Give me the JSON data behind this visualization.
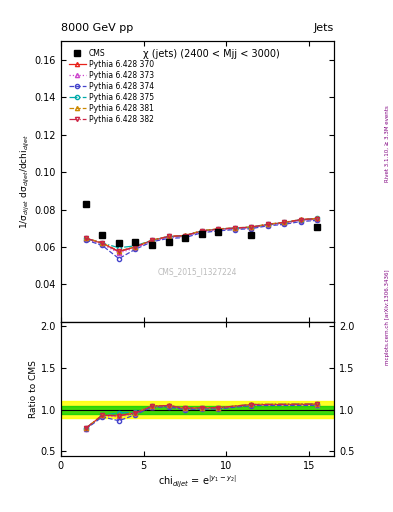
{
  "title_left": "8000 GeV pp",
  "title_right": "Jets",
  "panel_title": "χ (jets) (2400 < Mjj < 3000)",
  "ylabel_main": "1/σ$_{dijet}$ dσ$_{dijet}$/dchi$_{dijet}$",
  "ylabel_ratio": "Ratio to CMS",
  "xlabel": "chi$_{dijet}$ = e$^{|y_1-y_2|}$",
  "watermark": "CMS_2015_I1327224",
  "right_label": "mcplots.cern.ch [arXiv:1306.3436]",
  "rivet_label": "Rivet 3.1.10, ≥ 3.3M events",
  "cms_x": [
    1.5,
    2.5,
    3.5,
    4.5,
    5.5,
    6.5,
    7.5,
    8.5,
    9.5,
    11.5,
    15.5
  ],
  "cms_y": [
    0.0831,
    0.0665,
    0.062,
    0.0625,
    0.061,
    0.0625,
    0.065,
    0.067,
    0.068,
    0.0665,
    0.0705
  ],
  "x_mc": [
    1.5,
    2.5,
    3.5,
    4.5,
    5.5,
    6.5,
    7.5,
    8.5,
    9.5,
    10.5,
    11.5,
    12.5,
    13.5,
    14.5,
    15.5
  ],
  "y_370": [
    0.0645,
    0.062,
    0.0575,
    0.06,
    0.0635,
    0.0655,
    0.066,
    0.0685,
    0.0695,
    0.07,
    0.0705,
    0.072,
    0.073,
    0.0745,
    0.075
  ],
  "y_373": [
    0.0643,
    0.0615,
    0.0568,
    0.0595,
    0.0631,
    0.065,
    0.0656,
    0.068,
    0.0691,
    0.0697,
    0.0702,
    0.0717,
    0.0726,
    0.0741,
    0.0747
  ],
  "y_374": [
    0.0638,
    0.0608,
    0.0538,
    0.0588,
    0.0628,
    0.0646,
    0.065,
    0.0676,
    0.0686,
    0.0693,
    0.0698,
    0.0713,
    0.0721,
    0.0736,
    0.0742
  ],
  "y_375": [
    0.0646,
    0.0621,
    0.0596,
    0.0606,
    0.0636,
    0.0656,
    0.0661,
    0.0686,
    0.0696,
    0.0701,
    0.0706,
    0.0721,
    0.0731,
    0.0746,
    0.0753
  ],
  "y_381": [
    0.0648,
    0.0622,
    0.0578,
    0.0602,
    0.0637,
    0.0657,
    0.0662,
    0.0687,
    0.0697,
    0.0702,
    0.0707,
    0.0722,
    0.0732,
    0.0747,
    0.0753
  ],
  "y_382": [
    0.0647,
    0.0621,
    0.0576,
    0.0601,
    0.0636,
    0.0656,
    0.0661,
    0.0686,
    0.0696,
    0.0701,
    0.0706,
    0.0721,
    0.0731,
    0.0746,
    0.0752
  ],
  "color_370": "#e8221a",
  "color_373": "#cc44cc",
  "color_374": "#4444cc",
  "color_375": "#00aaaa",
  "color_381": "#cc8800",
  "color_382": "#cc2244",
  "ylim_main": [
    0.02,
    0.17
  ],
  "ylim_ratio": [
    0.45,
    2.05
  ],
  "xlim": [
    0,
    16.5
  ],
  "xticks": [
    0,
    5,
    10,
    15
  ],
  "yticks_main": [
    0.04,
    0.06,
    0.08,
    0.1,
    0.12,
    0.14,
    0.16
  ],
  "yticks_ratio": [
    0.5,
    1.0,
    1.5,
    2.0
  ],
  "green_band_lo": 0.95,
  "green_band_hi": 1.05,
  "yellow_band_lo": 0.9,
  "yellow_band_hi": 1.1
}
